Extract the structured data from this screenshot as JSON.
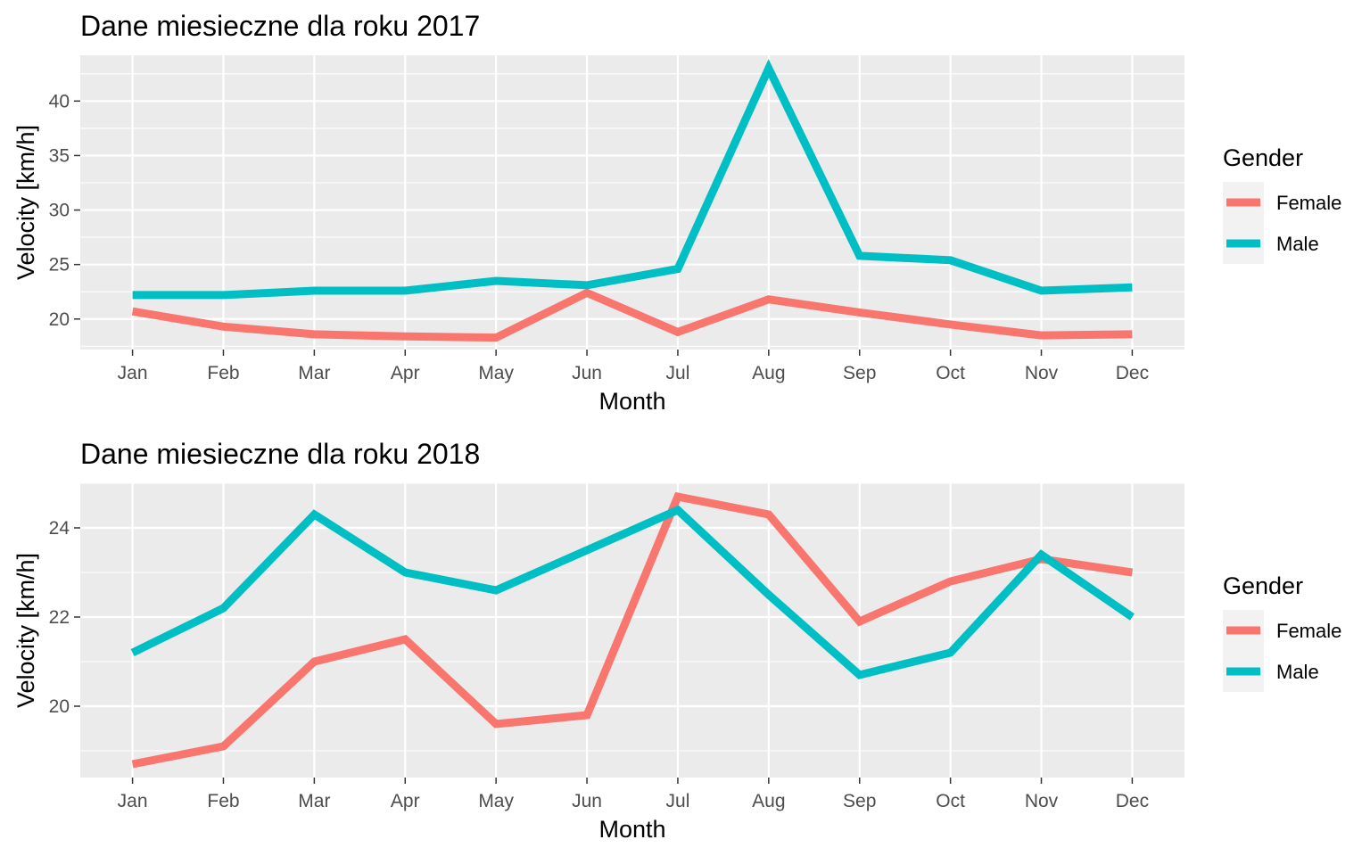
{
  "chart_data": [
    {
      "type": "line",
      "title": "Dane miesieczne dla  roku 2017",
      "xlabel": "Month",
      "ylabel": "Velocity [km/h]",
      "categories": [
        "Jan",
        "Feb",
        "Mar",
        "Apr",
        "May",
        "Jun",
        "Jul",
        "Aug",
        "Sep",
        "Oct",
        "Nov",
        "Dec"
      ],
      "ylim": [
        17.2,
        44.2
      ],
      "yticks": [
        20,
        25,
        30,
        35,
        40
      ],
      "grid": true,
      "legend": {
        "title": "Gender",
        "position": "right"
      },
      "series": [
        {
          "name": "Female",
          "color": "#F8766D",
          "values": [
            20.7,
            19.3,
            18.6,
            18.4,
            18.3,
            22.4,
            18.8,
            21.8,
            20.6,
            19.5,
            18.5,
            18.6
          ]
        },
        {
          "name": "Male",
          "color": "#00BFC4",
          "values": [
            22.2,
            22.2,
            22.6,
            22.6,
            23.5,
            23.1,
            24.6,
            43.0,
            25.8,
            25.4,
            22.6,
            22.9
          ]
        }
      ]
    },
    {
      "type": "line",
      "title": "Dane miesieczne dla  roku 2018",
      "xlabel": "Month",
      "ylabel": "Velocity [km/h]",
      "categories": [
        "Jan",
        "Feb",
        "Mar",
        "Apr",
        "May",
        "Jun",
        "Jul",
        "Aug",
        "Sep",
        "Oct",
        "Nov",
        "Dec"
      ],
      "ylim": [
        18.4,
        25.0
      ],
      "yticks": [
        20,
        22,
        24
      ],
      "grid": true,
      "legend": {
        "title": "Gender",
        "position": "right"
      },
      "series": [
        {
          "name": "Female",
          "color": "#F8766D",
          "values": [
            18.7,
            19.1,
            21.0,
            21.5,
            19.6,
            19.8,
            24.7,
            24.3,
            21.9,
            22.8,
            23.3,
            23.0
          ]
        },
        {
          "name": "Male",
          "color": "#00BFC4",
          "values": [
            21.2,
            22.2,
            24.3,
            23.0,
            22.6,
            23.5,
            24.4,
            22.5,
            20.7,
            21.2,
            23.4,
            22.0
          ]
        }
      ]
    }
  ]
}
